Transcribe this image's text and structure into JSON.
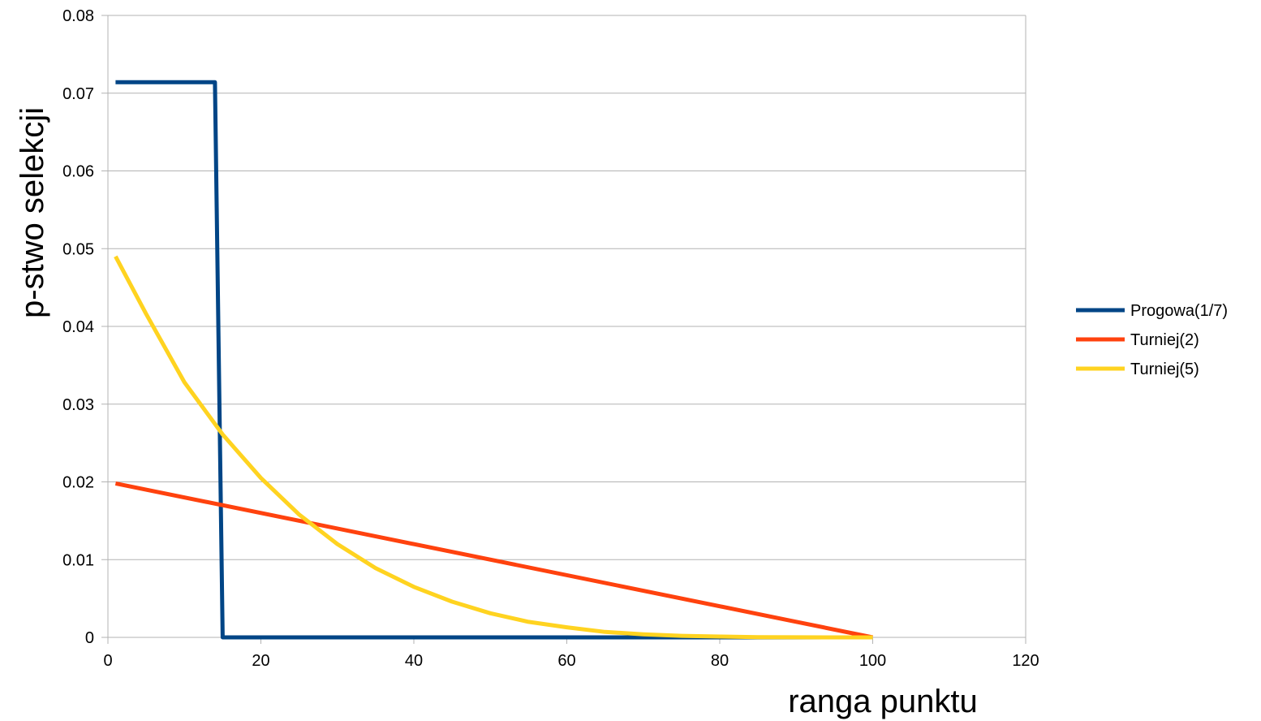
{
  "chart_data": {
    "type": "line",
    "title": "",
    "xlabel": "ranga punktu",
    "ylabel": "p-stwo selekcji",
    "xlim": [
      0,
      120
    ],
    "ylim": [
      0,
      0.08
    ],
    "x_ticks": [
      "0",
      "20",
      "40",
      "60",
      "80",
      "100",
      "120"
    ],
    "y_ticks": [
      "0",
      "0.01",
      "0.02",
      "0.03",
      "0.04",
      "0.05",
      "0.06",
      "0.07",
      "0.08"
    ],
    "grid": "horizontal",
    "legend_position": "right",
    "series": [
      {
        "name": "Progowa(1/7)",
        "color": "#004586",
        "x": [
          1,
          14,
          15,
          100
        ],
        "y": [
          0.0714,
          0.0714,
          0,
          0
        ]
      },
      {
        "name": "Turniej(2)",
        "color": "#ff420e",
        "x": [
          1,
          100
        ],
        "y": [
          0.0198,
          0
        ]
      },
      {
        "name": "Turniej(5)",
        "color": "#ffd320",
        "x": [
          1,
          5,
          10,
          15,
          20,
          25,
          30,
          35,
          40,
          45,
          50,
          55,
          60,
          65,
          70,
          75,
          80,
          85,
          90,
          95,
          100
        ],
        "y": [
          0.049,
          0.0416,
          0.0328,
          0.0261,
          0.0205,
          0.0158,
          0.012,
          0.0089,
          0.0065,
          0.0046,
          0.0031,
          0.002,
          0.0013,
          0.0007,
          0.0004,
          0.0002,
          0.0001,
          3e-05,
          1e-05,
          0,
          0
        ]
      }
    ]
  }
}
